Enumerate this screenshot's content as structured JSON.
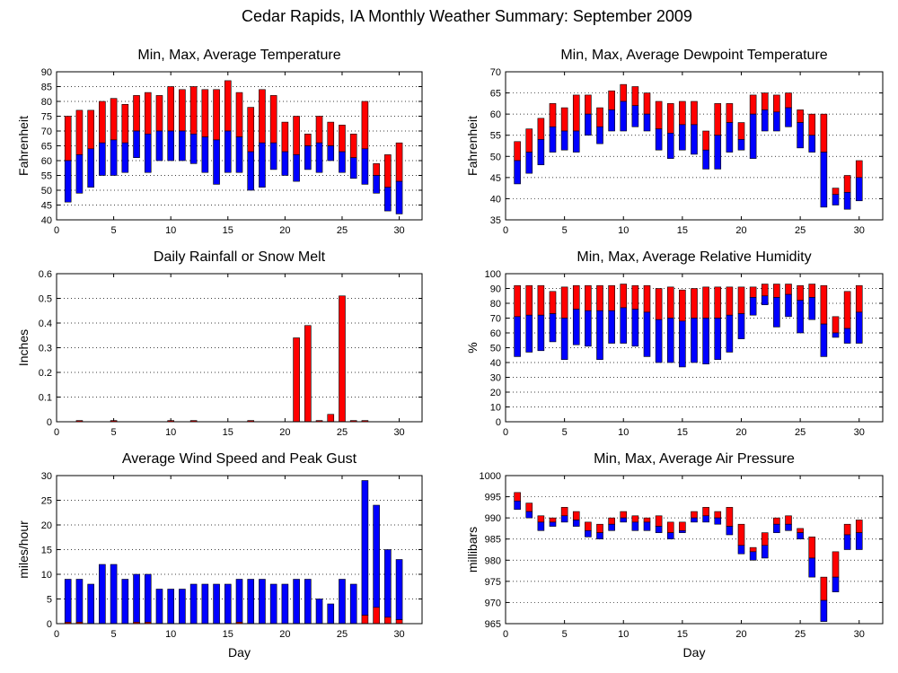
{
  "page": {
    "title": "Cedar Rapids, IA Monthly Weather Summary: September 2009"
  },
  "colors": {
    "max_part": "#ff0000",
    "min_part": "#0000ff",
    "outline": "#000000"
  },
  "chart_data": [
    {
      "id": "temp",
      "type": "bar",
      "title": "Min, Max, Average Temperature",
      "xlabel": "",
      "ylabel": "Fahrenheit",
      "ylim": [
        40,
        90
      ],
      "yticks": [
        40,
        45,
        50,
        55,
        60,
        65,
        70,
        75,
        80,
        85,
        90
      ],
      "xlim": [
        0,
        32
      ],
      "xticks": [
        0,
        5,
        10,
        15,
        20,
        25,
        30
      ],
      "series": [
        {
          "name": "Min",
          "values": [
            46,
            49,
            51,
            55,
            55,
            56,
            61,
            56,
            60,
            60,
            60,
            59,
            56,
            52,
            56,
            56,
            50,
            51,
            57,
            55,
            53,
            57,
            56,
            60,
            56,
            54,
            52,
            49,
            43,
            42
          ]
        },
        {
          "name": "Average",
          "values": [
            60,
            62,
            64,
            66,
            67,
            66,
            70,
            69,
            70,
            70,
            70,
            69,
            68,
            67,
            70,
            68,
            63,
            66,
            66,
            63,
            62,
            65,
            66,
            65,
            63,
            61,
            64,
            55,
            51,
            53
          ]
        },
        {
          "name": "Max",
          "values": [
            75,
            77,
            77,
            80,
            81,
            79,
            82,
            83,
            82,
            85,
            84,
            85,
            84,
            84,
            87,
            83,
            78,
            84,
            82,
            73,
            75,
            69,
            75,
            73,
            72,
            69,
            80,
            59,
            62,
            66
          ]
        }
      ]
    },
    {
      "id": "dew",
      "type": "bar",
      "title": "Min, Max, Average Dewpoint Temperature",
      "xlabel": "",
      "ylabel": "Fahrenheit",
      "ylim": [
        35,
        70
      ],
      "yticks": [
        35,
        40,
        45,
        50,
        55,
        60,
        65,
        70
      ],
      "xlim": [
        0,
        32
      ],
      "xticks": [
        0,
        5,
        10,
        15,
        20,
        25,
        30
      ],
      "series": [
        {
          "name": "Min",
          "values": [
            43.5,
            46,
            48,
            51,
            51.5,
            51,
            55,
            53,
            56,
            56,
            57,
            56,
            51.5,
            49.5,
            51.5,
            50.5,
            47,
            47,
            51,
            51.5,
            49.5,
            56,
            56,
            57,
            52,
            51,
            38,
            38.5,
            37.5,
            39.5
          ]
        },
        {
          "name": "Average",
          "values": [
            49,
            51,
            54,
            57,
            56,
            56,
            60,
            57,
            61,
            63,
            62,
            60,
            56.5,
            55.5,
            57.5,
            57.5,
            51.5,
            55,
            58,
            54,
            60,
            61,
            60.5,
            61.5,
            58,
            55,
            51,
            41,
            41.5,
            45
          ]
        },
        {
          "name": "Max",
          "values": [
            53.5,
            56.5,
            59,
            62.5,
            61.5,
            64.5,
            64.5,
            61.5,
            65.5,
            67,
            66.5,
            65,
            63,
            62.5,
            63,
            63,
            56,
            62.5,
            62.5,
            58,
            64.5,
            65,
            64.5,
            65,
            61,
            60,
            60,
            42.5,
            45.5,
            49
          ]
        }
      ]
    },
    {
      "id": "rain",
      "type": "bar",
      "title": "Daily Rainfall or Snow Melt",
      "xlabel": "",
      "ylabel": "Inches",
      "ylim": [
        0,
        0.6
      ],
      "yticks": [
        0,
        0.1,
        0.2,
        0.3,
        0.4,
        0.5,
        0.6
      ],
      "xlim": [
        0,
        32
      ],
      "xticks": [
        0,
        5,
        10,
        15,
        20,
        25,
        30
      ],
      "series": [
        {
          "name": "Rainfall",
          "values": [
            0,
            0.005,
            0,
            0,
            0.005,
            0,
            0,
            0,
            0,
            0.005,
            0,
            0.005,
            0,
            0,
            0,
            0,
            0.005,
            0,
            0,
            0,
            0.34,
            0.39,
            0.005,
            0.03,
            0.51,
            0.005,
            0.005,
            0,
            0,
            0
          ]
        }
      ]
    },
    {
      "id": "rh",
      "type": "bar",
      "title": "Min, Max, Average Relative Humidity",
      "xlabel": "",
      "ylabel": "%",
      "ylim": [
        0,
        100
      ],
      "yticks": [
        0,
        10,
        20,
        30,
        40,
        50,
        60,
        70,
        80,
        90,
        100
      ],
      "xlim": [
        0,
        32
      ],
      "xticks": [
        0,
        5,
        10,
        15,
        20,
        25,
        30
      ],
      "series": [
        {
          "name": "Min",
          "values": [
            44,
            47,
            48,
            54,
            42,
            52,
            51,
            42,
            53,
            53,
            51,
            44,
            40,
            40,
            37,
            40,
            39,
            42,
            47,
            56,
            72,
            79,
            64,
            71,
            60,
            69,
            44,
            57,
            53,
            53
          ]
        },
        {
          "name": "Average",
          "values": [
            71,
            72,
            72,
            73,
            70,
            76,
            75,
            75,
            75,
            77,
            76,
            74,
            69,
            70,
            68,
            70,
            70,
            70,
            72,
            73,
            84,
            85,
            84,
            86,
            82,
            84,
            66,
            60,
            63,
            74
          ]
        },
        {
          "name": "Max",
          "values": [
            92,
            92,
            92,
            88,
            91,
            92,
            92,
            92,
            92,
            93,
            92,
            92,
            90,
            91,
            89,
            90,
            91,
            91,
            91,
            91,
            91,
            93,
            93,
            93,
            92,
            93,
            92,
            71,
            88,
            92
          ]
        }
      ]
    },
    {
      "id": "wind",
      "type": "bar",
      "title": "Average Wind Speed and Peak Gust",
      "xlabel": "Day",
      "ylabel": "miles/hour",
      "ylim": [
        0,
        30
      ],
      "yticks": [
        0,
        5,
        10,
        15,
        20,
        25,
        30
      ],
      "xlim": [
        0,
        32
      ],
      "xticks": [
        0,
        5,
        10,
        15,
        20,
        25,
        30
      ],
      "series": [
        {
          "name": "Average Wind Speed",
          "values": [
            0.3,
            0.3,
            0,
            0,
            0,
            0,
            0.3,
            0.3,
            0,
            0,
            0,
            0,
            0,
            0,
            0,
            0.3,
            0,
            0,
            0,
            0,
            0,
            0,
            0,
            0,
            0,
            0,
            1.7,
            3.3,
            1.3,
            0.8
          ]
        },
        {
          "name": "Peak Gust",
          "values": [
            9,
            9,
            8,
            12,
            12,
            9,
            10,
            10,
            7,
            7,
            7,
            8,
            8,
            8,
            8,
            9,
            9,
            9,
            8,
            8,
            9,
            9,
            5,
            4,
            9,
            8,
            29,
            24,
            15,
            13
          ]
        }
      ]
    },
    {
      "id": "pres",
      "type": "bar",
      "title": "Min, Max, Average Air Pressure",
      "xlabel": "Day",
      "ylabel": "millibars",
      "ylim": [
        965,
        1000
      ],
      "yticks": [
        965,
        970,
        975,
        980,
        985,
        990,
        995,
        1000
      ],
      "xlim": [
        0,
        32
      ],
      "xticks": [
        0,
        5,
        10,
        15,
        20,
        25,
        30
      ],
      "series": [
        {
          "name": "Min",
          "values": [
            992,
            990,
            987,
            988,
            989,
            988,
            985.5,
            985,
            987,
            989,
            987,
            987,
            986.5,
            985,
            986.5,
            989,
            989,
            988.5,
            986,
            981.5,
            980,
            980.5,
            986.5,
            987,
            985,
            976,
            965.5,
            972.5,
            982.5,
            982.5
          ]
        },
        {
          "name": "Average",
          "values": [
            994,
            991.5,
            989,
            989,
            990.5,
            989.5,
            987,
            986.5,
            988.5,
            990,
            989,
            989,
            988,
            986.5,
            987,
            990,
            990.5,
            990,
            988,
            983.5,
            982,
            983.5,
            988.5,
            988.5,
            986.5,
            980.5,
            970.5,
            976,
            986,
            986.5
          ]
        },
        {
          "name": "Max",
          "values": [
            996,
            993.5,
            990.5,
            990,
            992.5,
            991.5,
            989,
            988.5,
            990,
            991.5,
            990.5,
            990,
            990.5,
            989,
            989,
            991.5,
            992.5,
            991.5,
            992.5,
            988.5,
            983,
            986.5,
            990,
            990.5,
            987.5,
            985.5,
            976,
            982,
            988.5,
            989.5
          ]
        }
      ]
    }
  ]
}
